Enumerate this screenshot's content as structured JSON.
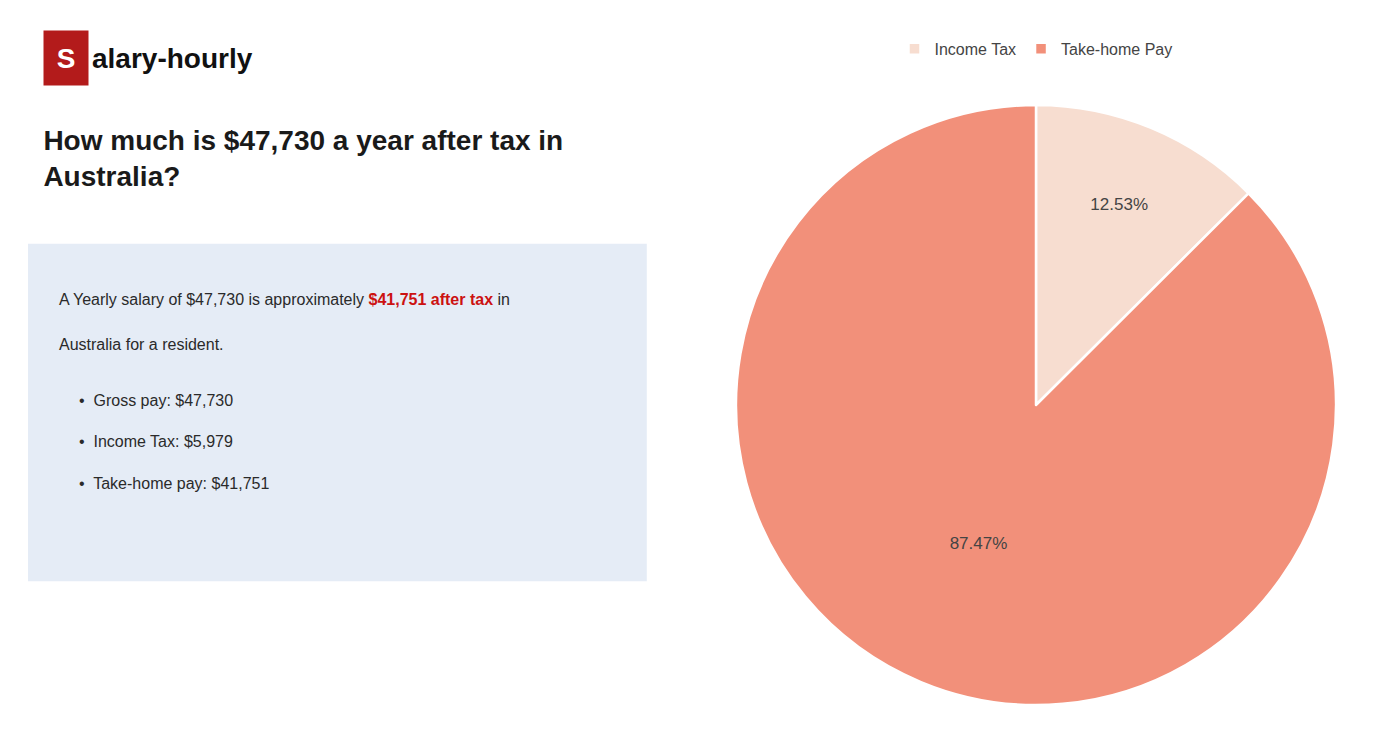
{
  "chart_data": {
    "type": "pie",
    "title": "How much is $47,730 a year after tax in\nAustralia?",
    "categories": [
      "Income Tax",
      "Take-home Pay"
    ],
    "values": [
      12.53,
      87.47
    ],
    "value_labels": [
      "12.53%",
      "87.47%"
    ],
    "colors": [
      "#f7ddd0",
      "#f2907a"
    ],
    "data_labels": true,
    "legend": "top",
    "annotations": [
      {
        "text": "S",
        "color": "#b31b1b"
      },
      {
        "text": "alary-hourly"
      },
      {
        "text": "A Yearly salary of $47,730 is approximately "
      },
      {
        "text": "$41,751 after tax",
        "color": "#cc1111"
      },
      {
        "text": " in"
      },
      {
        "text": "Australia for a resident."
      },
      {
        "text": "•  Gross pay: $47,730"
      },
      {
        "text": "•  Income Tax: $5,979"
      },
      {
        "text": "•  Take-home pay: $41,751"
      }
    ]
  }
}
